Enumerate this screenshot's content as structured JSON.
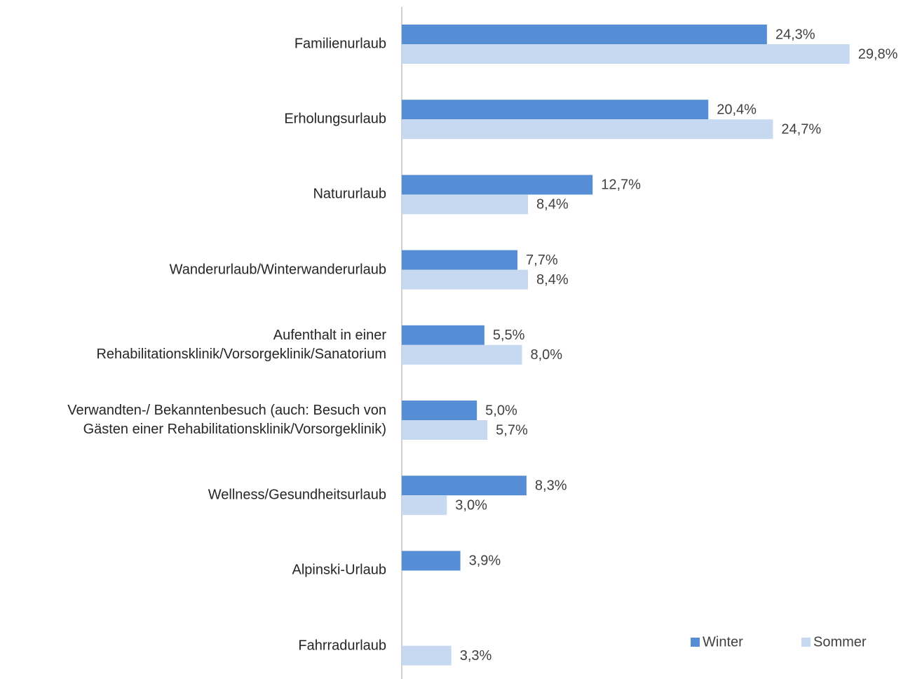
{
  "chart_data": {
    "type": "bar",
    "orientation": "horizontal",
    "categories": [
      "Familienurlaub",
      "Erholungsurlaub",
      "Natururlaub",
      "Wanderurlaub/Winterwanderurlaub",
      "Aufenthalt in einer\nRehabilitationsklinik/Vorsorgeklinik/Sanatorium",
      "Verwandten-/ Bekanntenbesuch (auch: Besuch von\nGästen einer Rehabilitationsklinik/Vorsorgeklinik)",
      "Wellness/Gesundheitsurlaub",
      "Alpinski-Urlaub",
      "Fahrradurlaub"
    ],
    "series": [
      {
        "name": "Winter",
        "color": "#558ed5",
        "values": [
          24.3,
          20.4,
          12.7,
          7.7,
          5.5,
          5.0,
          8.3,
          3.9,
          null
        ],
        "value_labels": [
          "24,3%",
          "20,4%",
          "12,7%",
          "7,7%",
          "5,5%",
          "5,0%",
          "8,3%",
          "3,9%",
          null
        ]
      },
      {
        "name": "Sommer",
        "color": "#c6d9f1",
        "values": [
          29.8,
          24.7,
          8.4,
          8.4,
          8.0,
          5.7,
          3.0,
          null,
          3.3
        ],
        "value_labels": [
          "29,8%",
          "24,7%",
          "8,4%",
          "8,4%",
          "8,0%",
          "5,7%",
          "3,0%",
          null,
          "3,3%"
        ]
      }
    ],
    "xlim": [
      0,
      30
    ],
    "legend": "lower right"
  }
}
